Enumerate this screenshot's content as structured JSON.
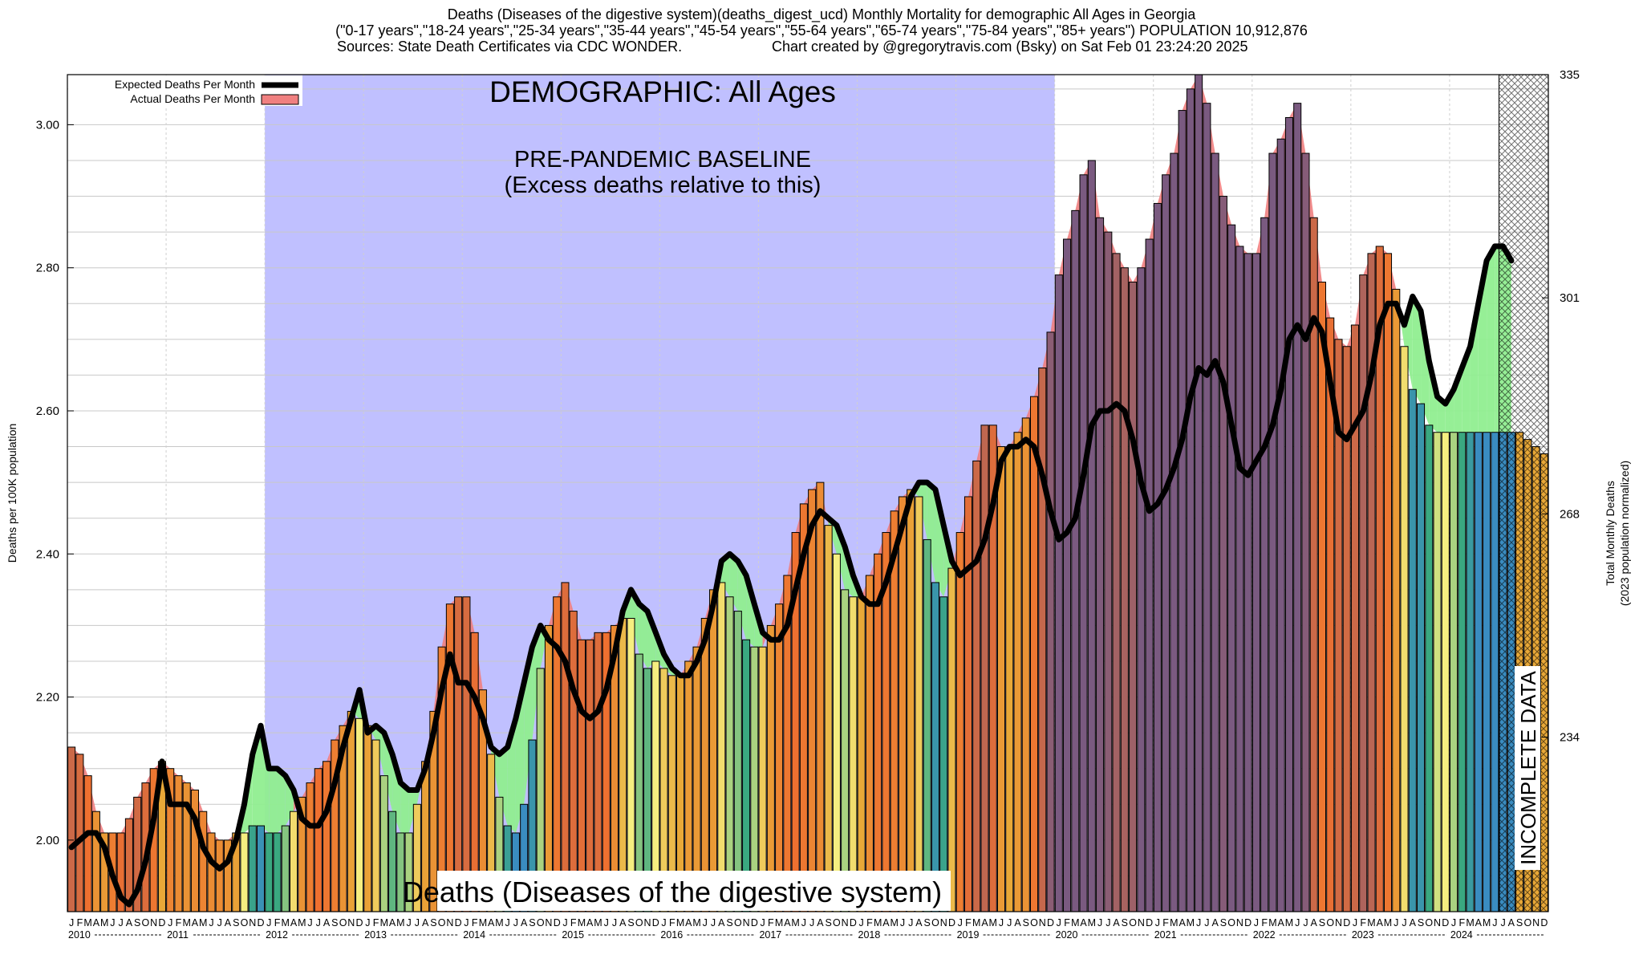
{
  "header": {
    "title_line1": "Deaths (Diseases of the digestive system)(deaths_digest_ucd) Monthly Mortality for demographic All Ages in Georgia",
    "title_line2": "(\"0-17 years\",\"18-24 years\",\"25-34 years\",\"35-44 years\",\"45-54 years\",\"55-64 years\",\"65-74 years\",\"75-84 years\",\"85+ years\") POPULATION 10,912,876",
    "sources": "Sources: State Death Certificates via CDC WONDER.",
    "credit": "Chart created by @gregorytravis.com (Bsky) on Sat Feb 01 23:24:20 2025"
  },
  "annotations": {
    "demographic": "DEMOGRAPHIC: All Ages",
    "baseline_line1": "PRE-PANDEMIC BASELINE",
    "baseline_line2": "(Excess deaths relative to this)",
    "cause_label": "Deaths (Diseases of the digestive system)",
    "incomplete": "INCOMPLETE DATA"
  },
  "colors": {
    "baseline_shade": "#c0c0ff",
    "excess_fill": "#f08080",
    "deficit_fill": "#90ee90",
    "expected_line": "#000000",
    "bar_low": "#f5ee80",
    "bar_mid": "#e8a838",
    "bar_high": "#ee7030",
    "bar_teal": "#3aa880",
    "bar_blue": "#3a8cc0"
  },
  "chart_data": {
    "type": "bar",
    "title": "Deaths (Diseases of the digestive system)(deaths_digest_ucd) Monthly Mortality for demographic All Ages in Georgia",
    "ylabel": "Deaths per 100K population",
    "ylabel_right_line1": "Total Monthly Deaths",
    "ylabel_right_line2": "(2023 population normalized)",
    "ylim": [
      1.9,
      3.07
    ],
    "yticks": [
      "2.00",
      "2.20",
      "2.40",
      "2.60",
      "2.80",
      "3.00"
    ],
    "yticks_right": [
      {
        "value": 2.144,
        "label": "234"
      },
      {
        "value": 2.456,
        "label": "268"
      },
      {
        "value": 2.758,
        "label": "301"
      },
      {
        "value": 3.07,
        "label": "335"
      }
    ],
    "month_letters": [
      "J",
      "F",
      "M",
      "A",
      "M",
      "J",
      "J",
      "A",
      "S",
      "O",
      "N",
      "D"
    ],
    "years": [
      "2010",
      "2011",
      "2012",
      "2013",
      "2014",
      "2015",
      "2016",
      "2017",
      "2018",
      "2019",
      "2020",
      "2021",
      "2022",
      "2023",
      "2024"
    ],
    "baseline_period": "2012-01 to 2019-12",
    "incomplete_from": "2024-07",
    "legend": [
      {
        "label": "Expected Deaths Per Month",
        "type": "line"
      },
      {
        "label": "Actual Deaths Per Month",
        "type": "fill"
      }
    ],
    "series": [
      {
        "name": "Actual Deaths Per Month",
        "values": [
          2.13,
          2.12,
          2.09,
          2.04,
          2.01,
          2.01,
          2.01,
          2.03,
          2.06,
          2.08,
          2.1,
          2.11,
          2.1,
          2.09,
          2.08,
          2.07,
          2.04,
          2.01,
          2.0,
          2.0,
          2.01,
          2.01,
          2.02,
          2.02,
          2.01,
          2.01,
          2.02,
          2.04,
          2.06,
          2.08,
          2.1,
          2.11,
          2.14,
          2.16,
          2.18,
          2.17,
          2.16,
          2.14,
          2.09,
          2.04,
          2.01,
          2.01,
          2.05,
          2.11,
          2.18,
          2.27,
          2.33,
          2.34,
          2.34,
          2.29,
          2.21,
          2.12,
          2.06,
          2.02,
          2.01,
          2.05,
          2.14,
          2.24,
          2.3,
          2.34,
          2.36,
          2.32,
          2.28,
          2.28,
          2.29,
          2.29,
          2.3,
          2.31,
          2.31,
          2.26,
          2.24,
          2.25,
          2.24,
          2.23,
          2.23,
          2.25,
          2.27,
          2.31,
          2.35,
          2.36,
          2.34,
          2.32,
          2.28,
          2.27,
          2.27,
          2.3,
          2.33,
          2.37,
          2.43,
          2.47,
          2.49,
          2.5,
          2.44,
          2.4,
          2.35,
          2.34,
          2.34,
          2.37,
          2.4,
          2.43,
          2.46,
          2.48,
          2.49,
          2.48,
          2.42,
          2.36,
          2.34,
          2.38,
          2.43,
          2.48,
          2.53,
          2.58,
          2.58,
          2.55,
          2.55,
          2.57,
          2.59,
          2.62,
          2.66,
          2.71,
          2.79,
          2.84,
          2.88,
          2.93,
          2.95,
          2.87,
          2.85,
          2.82,
          2.8,
          2.78,
          2.8,
          2.84,
          2.89,
          2.93,
          2.96,
          3.02,
          3.05,
          3.07,
          3.03,
          2.96,
          2.9,
          2.86,
          2.83,
          2.82,
          2.82,
          2.87,
          2.96,
          2.98,
          3.01,
          3.03,
          2.96,
          2.87,
          2.78,
          2.73,
          2.7,
          2.69,
          2.72,
          2.79,
          2.82,
          2.83,
          2.82,
          2.77,
          2.69,
          2.63,
          2.61,
          2.58,
          2.57,
          2.57,
          2.57,
          2.57,
          2.57,
          2.57,
          2.57,
          2.57,
          2.57,
          2.57,
          2.57,
          2.56,
          2.55,
          2.54
        ]
      },
      {
        "name": "Expected Deaths Per Month",
        "values": [
          1.99,
          2.0,
          2.01,
          2.01,
          1.99,
          1.95,
          1.92,
          1.91,
          1.93,
          1.97,
          2.03,
          2.11,
          2.05,
          2.05,
          2.05,
          2.03,
          1.99,
          1.97,
          1.96,
          1.97,
          2.0,
          2.05,
          2.12,
          2.16,
          2.1,
          2.1,
          2.09,
          2.07,
          2.03,
          2.02,
          2.02,
          2.04,
          2.08,
          2.13,
          2.17,
          2.21,
          2.15,
          2.16,
          2.15,
          2.12,
          2.08,
          2.07,
          2.07,
          2.1,
          2.15,
          2.21,
          2.26,
          2.22,
          2.22,
          2.2,
          2.17,
          2.13,
          2.12,
          2.13,
          2.17,
          2.22,
          2.27,
          2.3,
          2.28,
          2.27,
          2.25,
          2.21,
          2.18,
          2.17,
          2.18,
          2.21,
          2.26,
          2.32,
          2.35,
          2.33,
          2.32,
          2.29,
          2.26,
          2.24,
          2.23,
          2.23,
          2.25,
          2.28,
          2.33,
          2.39,
          2.4,
          2.39,
          2.37,
          2.33,
          2.29,
          2.28,
          2.28,
          2.3,
          2.35,
          2.4,
          2.44,
          2.46,
          2.45,
          2.44,
          2.41,
          2.37,
          2.34,
          2.33,
          2.33,
          2.36,
          2.4,
          2.44,
          2.48,
          2.5,
          2.5,
          2.49,
          2.44,
          2.39,
          2.37,
          2.38,
          2.39,
          2.42,
          2.47,
          2.53,
          2.55,
          2.55,
          2.56,
          2.55,
          2.51,
          2.46,
          2.42,
          2.43,
          2.45,
          2.51,
          2.58,
          2.6,
          2.6,
          2.61,
          2.6,
          2.56,
          2.5,
          2.46,
          2.47,
          2.49,
          2.52,
          2.56,
          2.62,
          2.66,
          2.65,
          2.67,
          2.64,
          2.58,
          2.52,
          2.51,
          2.53,
          2.55,
          2.58,
          2.63,
          2.7,
          2.72,
          2.7,
          2.73,
          2.71,
          2.64,
          2.57,
          2.56,
          2.58,
          2.6,
          2.65,
          2.72,
          2.75,
          2.75,
          2.72,
          2.76,
          2.74,
          2.67,
          2.62,
          2.61,
          2.63,
          2.66,
          2.69,
          2.75,
          2.81,
          2.83,
          2.83,
          2.81
        ]
      }
    ]
  }
}
